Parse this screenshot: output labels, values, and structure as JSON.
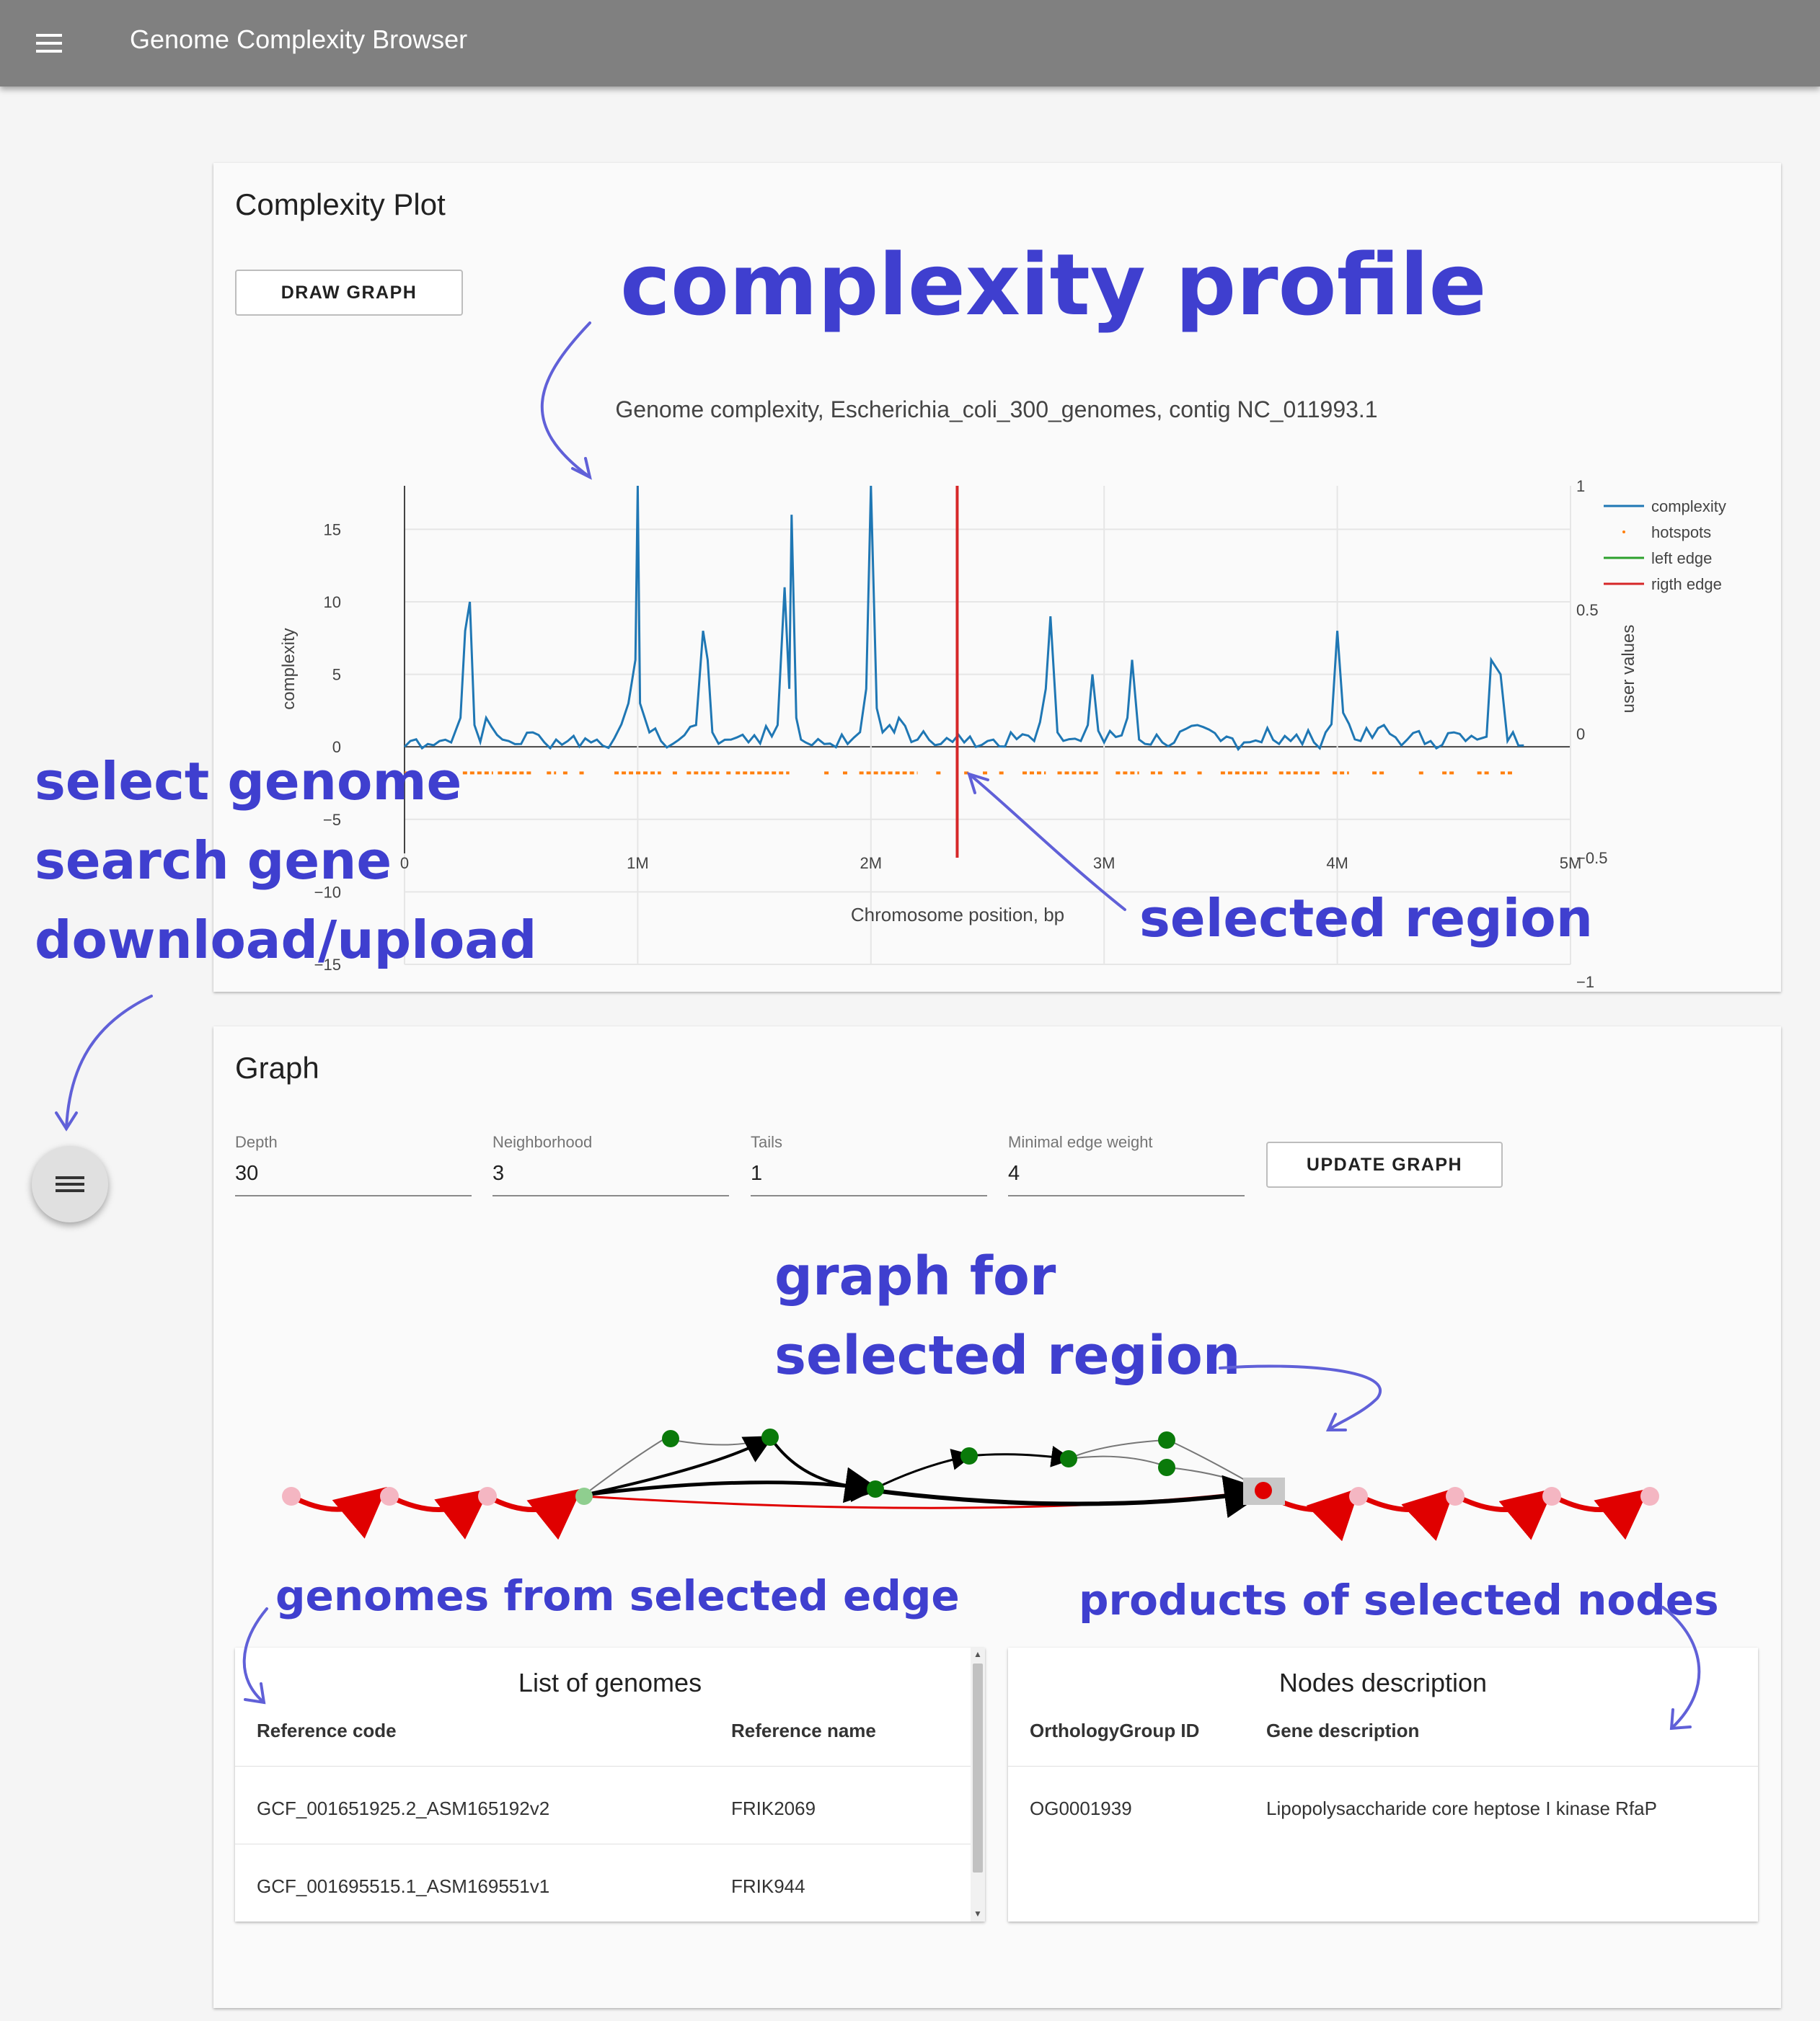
{
  "app": {
    "title": "Genome Complexity Browser"
  },
  "plot_card": {
    "title": "Complexity Plot",
    "draw_button": "DRAW GRAPH"
  },
  "chart_data": {
    "type": "line",
    "title": "Genome complexity, Escherichia_coli_300_genomes, contig NC_011993.1",
    "xlabel": "Chromosome position, bp",
    "ylabel": "complexity",
    "y2label": "user values",
    "xlim": [
      0,
      5000000
    ],
    "ylim": [
      -15,
      18
    ],
    "y2lim": [
      -1,
      1
    ],
    "x_ticks": [
      "0",
      "1M",
      "2M",
      "3M",
      "4M",
      "5M"
    ],
    "x_tick_values": [
      0,
      1000000,
      2000000,
      3000000,
      4000000,
      5000000
    ],
    "y_ticks": [
      "15",
      "10",
      "5",
      "0",
      "−5",
      "−10",
      "−15"
    ],
    "y_tick_values": [
      15,
      10,
      5,
      0,
      -5,
      -10,
      -15
    ],
    "y2_ticks": [
      "1",
      "0.5",
      "0",
      "−0.5",
      "−1"
    ],
    "y2_tick_values": [
      1,
      0.5,
      0,
      -0.5,
      -1
    ],
    "legend_position": "top-right",
    "grid": true,
    "series": [
      {
        "name": "complexity",
        "color": "#1f77b4",
        "x": [
          0,
          100000,
          200000,
          240000,
          260000,
          280000,
          300000,
          350000,
          420000,
          500000,
          550000,
          600000,
          700000,
          800000,
          900000,
          960000,
          990000,
          1000000,
          1010000,
          1050000,
          1100000,
          1150000,
          1200000,
          1250000,
          1280000,
          1300000,
          1320000,
          1400000,
          1500000,
          1600000,
          1630000,
          1650000,
          1660000,
          1680000,
          1700000,
          1720000,
          1800000,
          1900000,
          1980000,
          2000000,
          2050000,
          2080000,
          2100000,
          2120000,
          2200000,
          2300000,
          2400000,
          2500000,
          2600000,
          2700000,
          2750000,
          2770000,
          2800000,
          2900000,
          2930000,
          2950000,
          3000000,
          3100000,
          3120000,
          3150000,
          3250000,
          3400000,
          3500000,
          3600000,
          3700000,
          3750000,
          3800000,
          3900000,
          3950000,
          4000000,
          4100000,
          4200000,
          4300000,
          4400000,
          4500000,
          4550000,
          4600000,
          4640000,
          4660000,
          4700000,
          4730000,
          4800000
        ],
        "values": [
          0,
          0.2,
          0.3,
          2,
          8,
          10,
          1.5,
          2,
          0.5,
          0.2,
          1,
          0.3,
          0.4,
          0.3,
          0.6,
          3,
          6,
          18,
          3,
          1,
          0.4,
          0.2,
          0.8,
          1.5,
          8,
          6,
          1,
          0.5,
          0.8,
          1.5,
          11,
          4,
          16,
          2,
          0.5,
          0.3,
          0.2,
          0.2,
          4,
          18,
          1,
          1.5,
          1,
          2,
          0.5,
          0.2,
          0.3,
          0.4,
          1,
          0.4,
          4,
          9,
          1,
          0.4,
          1.5,
          5,
          0.3,
          2,
          6,
          0.5,
          0.3,
          1.5,
          0.4,
          0.3,
          1.3,
          0.2,
          0.4,
          0.3,
          1,
          8,
          0.4,
          1.5,
          0.5,
          0.4,
          1,
          0.4,
          0.5,
          0.7,
          6,
          5,
          0.4,
          0.1
        ]
      },
      {
        "name": "hotspots",
        "color": "#ff7f0e",
        "y": -1.8,
        "segments": [
          [
            0,
            20000
          ],
          [
            250000,
            380000
          ],
          [
            400000,
            550000
          ],
          [
            610000,
            650000
          ],
          [
            680000,
            700000
          ],
          [
            750000,
            780000
          ],
          [
            900000,
            1100000
          ],
          [
            1150000,
            1180000
          ],
          [
            1210000,
            1350000
          ],
          [
            1380000,
            1400000
          ],
          [
            1420000,
            1650000
          ],
          [
            1800000,
            1830000
          ],
          [
            1880000,
            1900000
          ],
          [
            1950000,
            2200000
          ],
          [
            2280000,
            2300000
          ],
          [
            2400000,
            2420000
          ],
          [
            2480000,
            2500000
          ],
          [
            2550000,
            2580000
          ],
          [
            2650000,
            2750000
          ],
          [
            2800000,
            2980000
          ],
          [
            3050000,
            3150000
          ],
          [
            3200000,
            3260000
          ],
          [
            3300000,
            3350000
          ],
          [
            3400000,
            3420000
          ],
          [
            3500000,
            3700000
          ],
          [
            3750000,
            3930000
          ],
          [
            3980000,
            4050000
          ],
          [
            4150000,
            4200000
          ],
          [
            4350000,
            4380000
          ],
          [
            4450000,
            4500000
          ],
          [
            4600000,
            4650000
          ],
          [
            4700000,
            4750000
          ]
        ]
      },
      {
        "name": "left edge",
        "color": "#2ca02c",
        "x": 2370000
      },
      {
        "name": "rigth edge",
        "color": "#d62728",
        "x": 2370000
      }
    ]
  },
  "graph_card": {
    "title": "Graph",
    "fields": [
      {
        "label": "Depth",
        "value": "30"
      },
      {
        "label": "Neighborhood",
        "value": "3"
      },
      {
        "label": "Tails",
        "value": "1"
      },
      {
        "label": "Minimal edge weight",
        "value": "4"
      }
    ],
    "update_button": "UPDATE GRAPH"
  },
  "genomes_table": {
    "title": "List of genomes",
    "headers": [
      "Reference code",
      "Reference name"
    ],
    "rows": [
      [
        "GCF_001651925.2_ASM165192v2",
        "FRIK2069"
      ],
      [
        "GCF_001695515.1_ASM169551v1",
        "FRIK944"
      ]
    ]
  },
  "nodes_table": {
    "title": "Nodes description",
    "headers": [
      "OrthologyGroup ID",
      "Gene description"
    ],
    "rows": [
      [
        "OG0001939",
        "Lipopolysaccharide core heptose I kinase RfaP"
      ]
    ]
  },
  "annotations": {
    "complexity_profile": "complexity profile",
    "select_genome": "select genome",
    "search_gene": "search gene",
    "download_upload": "download/upload",
    "selected_region": "selected region",
    "graph_for": "graph for",
    "selected_region_2": "selected region",
    "genomes_from_edge": "genomes from selected edge",
    "products_of_nodes": "products of selected nodes"
  },
  "colors": {
    "accent": "#3f3fcf",
    "appbar": "#808080",
    "card": "#fafafa"
  },
  "icons": {
    "menu": "menu-icon",
    "fab": "menu-icon"
  }
}
